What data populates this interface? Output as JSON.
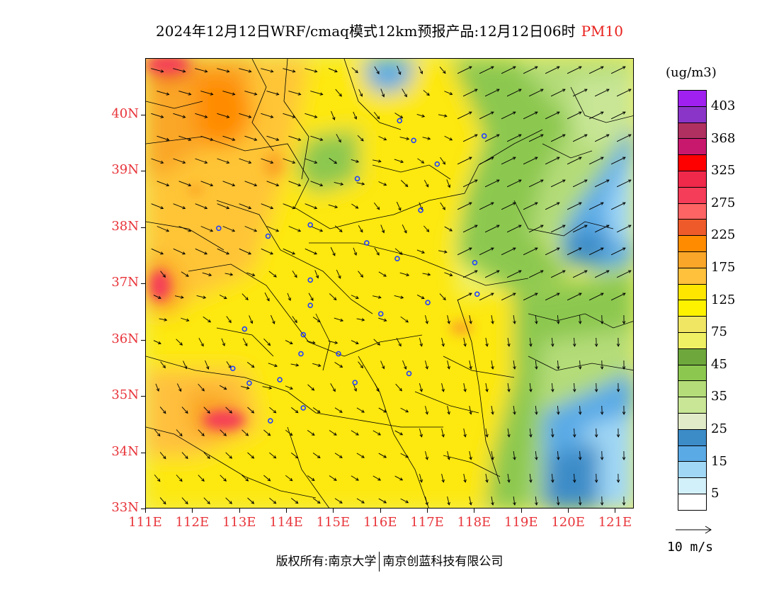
{
  "title": {
    "main": "2024年12月12日WRF/cmaq模式12km预报产品:12月12日06时",
    "pollutant": "PM10"
  },
  "axes": {
    "lat_labels": [
      "40N",
      "39N",
      "38N",
      "37N",
      "36N",
      "35N",
      "34N",
      "33N"
    ],
    "lon_labels": [
      "111E",
      "112E",
      "113E",
      "114E",
      "115E",
      "116E",
      "117E",
      "118E",
      "119E",
      "120E",
      "121E"
    ],
    "lat_range": [
      33,
      41
    ],
    "lon_range": [
      111,
      121.4
    ]
  },
  "legend": {
    "unit": "(ug/m3)",
    "levels": [
      {
        "label": "403",
        "color": "#a020f0"
      },
      {
        "label": "",
        "color": "#8b35c8"
      },
      {
        "label": "368",
        "color": "#b03060"
      },
      {
        "label": "",
        "color": "#c8186e"
      },
      {
        "label": "325",
        "color": "#ff0000"
      },
      {
        "label": "",
        "color": "#f0284a"
      },
      {
        "label": "275",
        "color": "#f53c58"
      },
      {
        "label": "",
        "color": "#ff6464"
      },
      {
        "label": "225",
        "color": "#ee5a2a"
      },
      {
        "label": "",
        "color": "#ff8c00"
      },
      {
        "label": "175",
        "color": "#faa628"
      },
      {
        "label": "",
        "color": "#ffc03c"
      },
      {
        "label": "125",
        "color": "#ffe600"
      },
      {
        "label": "",
        "color": "#fff200"
      },
      {
        "label": "75",
        "color": "#f0e664"
      },
      {
        "label": "",
        "color": "#f0f064"
      },
      {
        "label": "45",
        "color": "#6ea83c"
      },
      {
        "label": "",
        "color": "#8cc850"
      },
      {
        "label": "35",
        "color": "#b4dc78"
      },
      {
        "label": "",
        "color": "#c8e696"
      },
      {
        "label": "25",
        "color": "#e1ebc8"
      },
      {
        "label": "",
        "color": "#3c8cc8"
      },
      {
        "label": "15",
        "color": "#5aaae6"
      },
      {
        "label": "",
        "color": "#a0d7f5"
      },
      {
        "label": "5",
        "color": "#d2f0fa"
      },
      {
        "label": "",
        "color": "#ffffff"
      }
    ]
  },
  "wind_reference": {
    "label": "10 m/s"
  },
  "footer": {
    "left": "版权所有:南京大学",
    "right": "南京创蓝科技有限公司"
  },
  "colors": {
    "axis_label": "#e8343a",
    "pollutant_text": "#e8201c",
    "city_marker": "#2040ff"
  },
  "city_markers": [
    {
      "lon": 116.4,
      "lat": 39.9
    },
    {
      "lon": 116.7,
      "lat": 39.55
    },
    {
      "lon": 117.2,
      "lat": 39.13
    },
    {
      "lon": 118.2,
      "lat": 39.63
    },
    {
      "lon": 115.5,
      "lat": 38.87
    },
    {
      "lon": 116.85,
      "lat": 38.31
    },
    {
      "lon": 112.55,
      "lat": 37.99
    },
    {
      "lon": 113.6,
      "lat": 37.85
    },
    {
      "lon": 114.5,
      "lat": 38.05
    },
    {
      "lon": 115.7,
      "lat": 37.73
    },
    {
      "lon": 116.35,
      "lat": 37.45
    },
    {
      "lon": 118.0,
      "lat": 37.38
    },
    {
      "lon": 114.5,
      "lat": 37.07
    },
    {
      "lon": 114.5,
      "lat": 36.62
    },
    {
      "lon": 116.0,
      "lat": 36.47
    },
    {
      "lon": 117.0,
      "lat": 36.67
    },
    {
      "lon": 118.05,
      "lat": 36.82
    },
    {
      "lon": 113.1,
      "lat": 36.2
    },
    {
      "lon": 114.35,
      "lat": 36.1
    },
    {
      "lon": 114.3,
      "lat": 35.76
    },
    {
      "lon": 115.1,
      "lat": 35.76
    },
    {
      "lon": 112.85,
      "lat": 35.5
    },
    {
      "lon": 113.2,
      "lat": 35.24
    },
    {
      "lon": 113.85,
      "lat": 35.3
    },
    {
      "lon": 115.45,
      "lat": 35.25
    },
    {
      "lon": 116.6,
      "lat": 35.41
    },
    {
      "lon": 114.35,
      "lat": 34.8
    },
    {
      "lon": 113.65,
      "lat": 34.57
    }
  ]
}
